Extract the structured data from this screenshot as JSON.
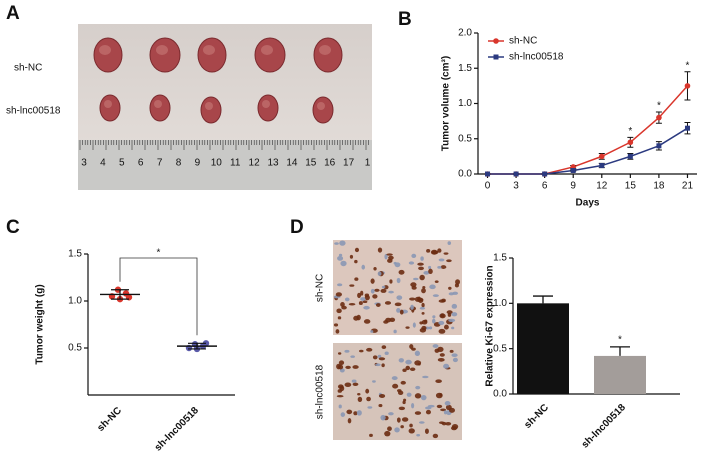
{
  "panel_a": {
    "letter": "A",
    "row_labels": [
      "sh-NC",
      "sh-lnc00518"
    ],
    "ruler_labels": [
      "3",
      "4",
      "5",
      "6",
      "7",
      "8",
      "9",
      "10",
      "11",
      "12",
      "13",
      "14",
      "15",
      "16",
      "17",
      "1"
    ]
  },
  "panel_d_images": {
    "letter": "D",
    "labels": [
      "sh-NC",
      "sh-lnc00518"
    ]
  },
  "chart_data": [
    {
      "type": "line",
      "panel": "B",
      "x_label": "Days",
      "y_label": "Tumor volume (cm³)",
      "x": [
        0,
        3,
        6,
        9,
        12,
        15,
        18,
        21
      ],
      "xlim": [
        -1,
        22
      ],
      "xticks": [
        0,
        3,
        6,
        9,
        12,
        15,
        18,
        21
      ],
      "ylim": [
        0,
        2
      ],
      "yticks": [
        {
          "value": 0,
          "label": "0.0"
        },
        0.5,
        {
          "value": 1,
          "label": "1.0"
        },
        1.5,
        {
          "value": 2,
          "label": "2.0"
        }
      ],
      "legend": "top-left",
      "series": [
        {
          "name": "sh-NC",
          "color": "#d9362c",
          "marker": "circle",
          "values": [
            0,
            0,
            0,
            0.1,
            0.25,
            0.45,
            0.8,
            1.25
          ],
          "errors": [
            0,
            0,
            0,
            0.02,
            0.04,
            0.07,
            0.08,
            0.2
          ]
        },
        {
          "name": "sh-lnc00518",
          "color": "#2b3a80",
          "marker": "square",
          "values": [
            0,
            0,
            0,
            0.05,
            0.12,
            0.25,
            0.4,
            0.65
          ],
          "errors": [
            0,
            0,
            0,
            0.01,
            0.03,
            0.04,
            0.06,
            0.08
          ]
        }
      ],
      "annotations": [
        null,
        null,
        null,
        null,
        null,
        "*",
        "*",
        "*"
      ]
    },
    {
      "type": "strip",
      "panel": "C",
      "y_label": "Tumor weight (g)",
      "categories": [
        "sh-NC",
        "sh-lnc00518"
      ],
      "colors": [
        "#d9362c",
        "#5a5aa8"
      ],
      "points": [
        [
          1.05,
          1.12,
          1.08,
          1.02,
          1.04
        ],
        [
          0.5,
          0.54,
          0.52,
          0.49,
          0.55
        ]
      ],
      "mean": [
        1.07,
        0.52
      ],
      "sd": [
        0.05,
        0.03
      ],
      "ylim": [
        0,
        1.5
      ],
      "yticks": [
        0.5,
        {
          "value": 1,
          "label": "1.0"
        },
        1.5
      ],
      "annotation": "*"
    },
    {
      "type": "bar",
      "panel": "D",
      "y_label": "Relative Ki-67 expression",
      "categories": [
        "sh-NC",
        "sh-lnc00518"
      ],
      "colors": [
        "#111111",
        "#a39d9a"
      ],
      "values": [
        1.0,
        0.42
      ],
      "errors": [
        0.08,
        0.1
      ],
      "ylim": [
        0,
        1.5
      ],
      "yticks": [
        {
          "value": 0,
          "label": "0.0"
        },
        0.5,
        {
          "value": 1,
          "label": "1.0"
        },
        1.5
      ],
      "annotations": [
        null,
        "*"
      ]
    }
  ]
}
